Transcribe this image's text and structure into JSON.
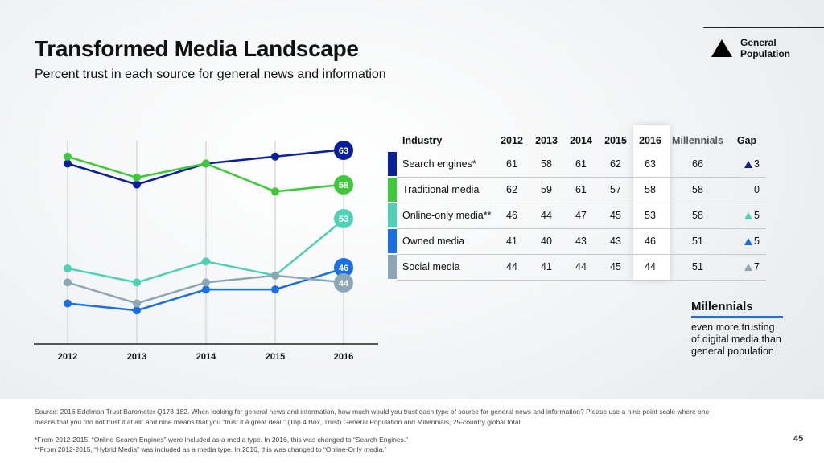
{
  "title": "Transformed Media Landscape",
  "subtitle": "Percent trust in each source for general news and information",
  "legend": {
    "label_line1": "General",
    "label_line2": "Population"
  },
  "chart_data": {
    "type": "line",
    "x": [
      "2012",
      "2013",
      "2014",
      "2015",
      "2016"
    ],
    "series": [
      {
        "name": "Search engines*",
        "values": [
          61,
          58,
          61,
          62,
          63
        ],
        "color": "#0a1f9e"
      },
      {
        "name": "Traditional media",
        "values": [
          62,
          59,
          61,
          57,
          58
        ],
        "color": "#3ec93a"
      },
      {
        "name": "Online-only media**",
        "values": [
          46,
          44,
          47,
          45,
          53
        ],
        "color": "#4fd1b5"
      },
      {
        "name": "Owned media",
        "values": [
          41,
          40,
          43,
          43,
          46
        ],
        "color": "#1a6ee8"
      },
      {
        "name": "Social media",
        "values": [
          44,
          41,
          44,
          45,
          44
        ],
        "color": "#8ba6b5"
      }
    ],
    "end_labels": [
      "63",
      "58",
      "53",
      "46",
      "44"
    ]
  },
  "table": {
    "headers": [
      "Industry",
      "2012",
      "2013",
      "2014",
      "2015",
      "2016",
      "Millennials",
      "Gap"
    ],
    "rows": [
      {
        "name": "Search engines*",
        "vals": [
          "61",
          "58",
          "61",
          "62",
          "63"
        ],
        "mill": "66",
        "gap": "3",
        "color": "#0a1f9e",
        "gap_color": "#0a1f9e"
      },
      {
        "name": "Traditional media",
        "vals": [
          "62",
          "59",
          "61",
          "57",
          "58"
        ],
        "mill": "58",
        "gap": "0",
        "color": "#3ec93a",
        "gap_color": ""
      },
      {
        "name": "Online-only media**",
        "vals": [
          "46",
          "44",
          "47",
          "45",
          "53"
        ],
        "mill": "58",
        "gap": "5",
        "color": "#4fd1b5",
        "gap_color": "#4fd1b5"
      },
      {
        "name": "Owned media",
        "vals": [
          "41",
          "40",
          "43",
          "43",
          "46"
        ],
        "mill": "51",
        "gap": "5",
        "color": "#1a6ee8",
        "gap_color": "#1a6ee8"
      },
      {
        "name": "Social media",
        "vals": [
          "44",
          "41",
          "44",
          "45",
          "44"
        ],
        "mill": "51",
        "gap": "7",
        "color": "#8ba6b5",
        "gap_color": "#8ba6b5"
      }
    ]
  },
  "millennials_note": {
    "title": "Millennials",
    "text": "even more trusting of digital media than general population"
  },
  "source": "Source: 2016 Edelman Trust Barometer Q178-182. When looking for general news and information, how much would you trust each type of source for general news and information? Please use a nine-point scale where one means that you “do not trust it at all” and nine means that you “trust it a great deal.” (Top 4 Box, Trust) General Population and Millennials, 25-country global total.",
  "note1": "*From 2012-2015, “Online Search Engines” were included as a media type. In 2016, this was changed to “Search Engines.”",
  "note2": "**From 2012-2015, “Hybrid Media” was included as a media type. In 2016, this was changed to “Online-Only media.”",
  "page_number": "45"
}
